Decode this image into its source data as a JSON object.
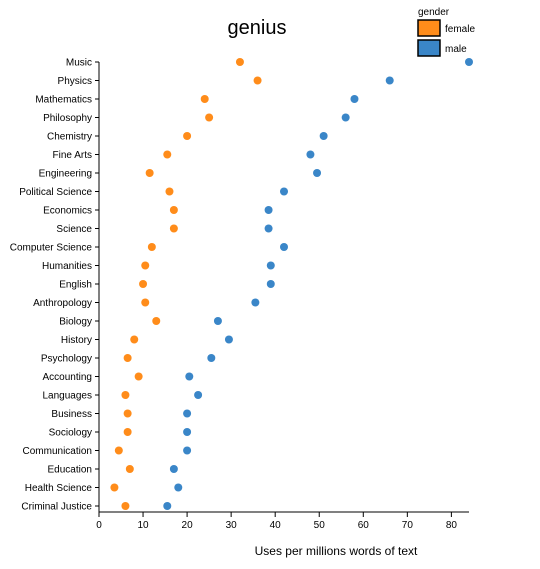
{
  "chart_data": {
    "type": "scatter",
    "title": "genius",
    "xlabel": "Uses per millions words of text",
    "ylabel": "",
    "xlim": [
      0,
      84
    ],
    "xticks": [
      0,
      10,
      20,
      30,
      40,
      50,
      60,
      70,
      80
    ],
    "categories": [
      "Music",
      "Physics",
      "Mathematics",
      "Philosophy",
      "Chemistry",
      "Fine Arts",
      "Engineering",
      "Political Science",
      "Economics",
      "Science",
      "Computer Science",
      "Humanities",
      "English",
      "Anthropology",
      "Biology",
      "History",
      "Psychology",
      "Accounting",
      "Languages",
      "Business",
      "Sociology",
      "Communication",
      "Education",
      "Health Science",
      "Criminal Justice"
    ],
    "legend": {
      "title": "gender",
      "placement": "top-right"
    },
    "series": [
      {
        "name": "female",
        "color": "#ff8c1a",
        "values": [
          32,
          36,
          24,
          25,
          20,
          15.5,
          11.5,
          16,
          17,
          17,
          12,
          10.5,
          10,
          10.5,
          13,
          8,
          6.5,
          9,
          6,
          6.5,
          6.5,
          4.5,
          7,
          3.5,
          6
        ]
      },
      {
        "name": "male",
        "color": "#3a86c8",
        "values": [
          84,
          66,
          58,
          56,
          51,
          48,
          49.5,
          42,
          38.5,
          38.5,
          42,
          39,
          39,
          35.5,
          27,
          29.5,
          25.5,
          20.5,
          22.5,
          20,
          20,
          20,
          17,
          18,
          15.5
        ]
      }
    ]
  }
}
